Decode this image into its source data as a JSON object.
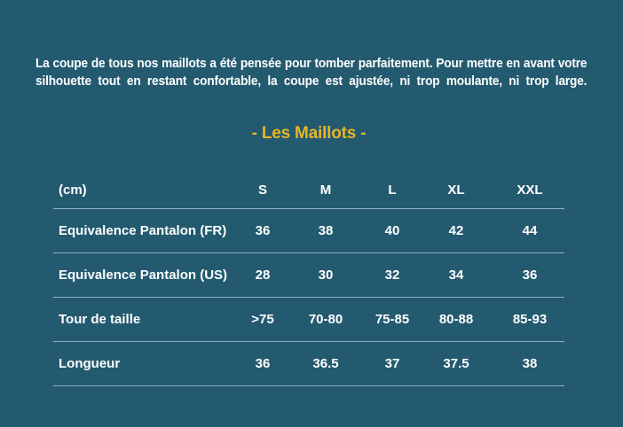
{
  "intro": {
    "text": "La coupe de tous nos maillots a été pensée pour tomber parfaitement. Pour mettre en avant votre silhouette tout en restant confortable, la coupe est ajustée, ni trop moulante, ni trop large."
  },
  "section_title": "- Les Maillots -",
  "table": {
    "headers": [
      "(cm)",
      "S",
      "M",
      "L",
      "XL",
      "XXL"
    ],
    "rows": [
      {
        "label": "Equivalence Pantalon (FR)",
        "values": [
          "36",
          "38",
          "40",
          "42",
          "44"
        ]
      },
      {
        "label": "Equivalence Pantalon (US)",
        "values": [
          "28",
          "30",
          "32",
          "34",
          "36"
        ]
      },
      {
        "label": "Tour de taille",
        "values": [
          ">75",
          "70-80",
          "75-85",
          "80-88",
          "85-93"
        ]
      },
      {
        "label": "Longueur",
        "values": [
          "36",
          "36.5",
          "37",
          "37.5",
          "38"
        ]
      }
    ]
  },
  "colors": {
    "background": "#235a6f",
    "accent": "#e8b526",
    "divider": "#8fb2bf"
  }
}
